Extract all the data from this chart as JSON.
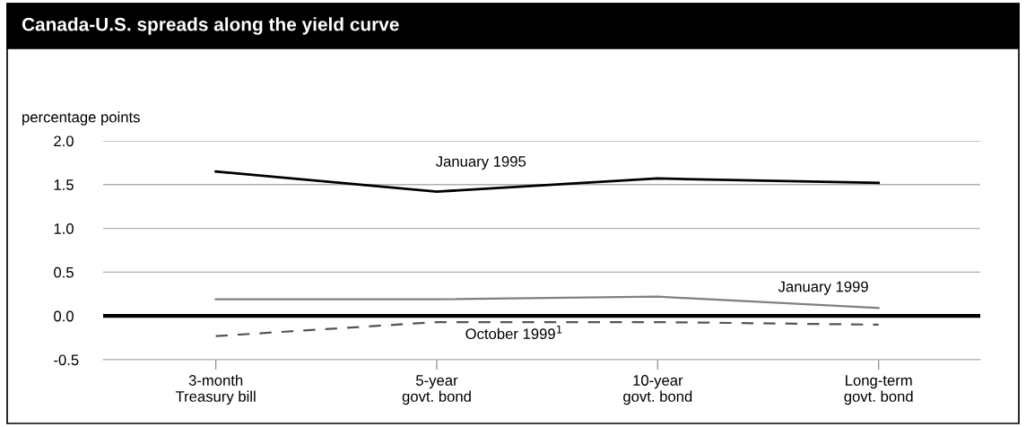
{
  "chart_data": {
    "type": "line",
    "title": "Canada-U.S. spreads along the yield curve",
    "ylabel": "percentage points",
    "categories": [
      "3-month\nTreasury bill",
      "5-year\ngovt. bond",
      "10-year\ngovt. bond",
      "Long-term\ngovt. bond"
    ],
    "series": [
      {
        "name": "January 1995",
        "color": "#000000",
        "line_style": "solid",
        "values": [
          1.65,
          1.42,
          1.57,
          1.52
        ]
      },
      {
        "name": "January 1999",
        "color": "#808080",
        "line_style": "solid",
        "values": [
          0.19,
          0.19,
          0.22,
          0.09
        ]
      },
      {
        "name": "October 1999$^{1}$",
        "color": "#555555",
        "line_style": "dashed",
        "values": [
          -0.23,
          -0.07,
          -0.07,
          -0.1
        ]
      }
    ],
    "ylim": [
      -0.5,
      2.0
    ],
    "yticks": [
      {
        "value": -0.5,
        "label": "-0.5"
      },
      {
        "value": 0,
        "label": "0.0"
      },
      {
        "value": 0.5,
        "label": "0.5"
      },
      {
        "value": 1,
        "label": "1.0"
      },
      {
        "value": 1.5,
        "label": "1.5"
      },
      {
        "value": 2,
        "label": "2.0"
      }
    ],
    "ref_lines": [
      {
        "axis": "y",
        "value": 0,
        "color": "#000000"
      }
    ],
    "grid": "y",
    "legend": false,
    "marker": "none"
  }
}
